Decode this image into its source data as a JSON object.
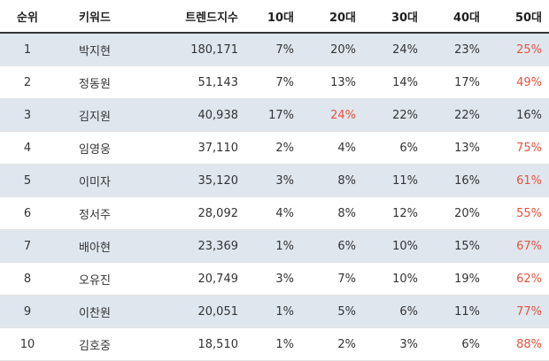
{
  "headers": {
    "rank": "순위",
    "keyword": "키워드",
    "trend": "트렌드지수",
    "age10": "10대",
    "age20": "20대",
    "age30": "30대",
    "age40": "40대",
    "age50": "50대"
  },
  "highlight_color": "#e5533d",
  "row_alt_color": "#dfe6ee",
  "rows": [
    {
      "rank": "1",
      "keyword": "박지현",
      "trend": "180,171",
      "a10": "7%",
      "a20": "20%",
      "a30": "24%",
      "a40": "23%",
      "a50": "25%",
      "max": "a50"
    },
    {
      "rank": "2",
      "keyword": "정동원",
      "trend": "51,143",
      "a10": "7%",
      "a20": "13%",
      "a30": "14%",
      "a40": "17%",
      "a50": "49%",
      "max": "a50"
    },
    {
      "rank": "3",
      "keyword": "김지원",
      "trend": "40,938",
      "a10": "17%",
      "a20": "24%",
      "a30": "22%",
      "a40": "22%",
      "a50": "16%",
      "max": "a20"
    },
    {
      "rank": "4",
      "keyword": "임영웅",
      "trend": "37,110",
      "a10": "2%",
      "a20": "4%",
      "a30": "6%",
      "a40": "13%",
      "a50": "75%",
      "max": "a50"
    },
    {
      "rank": "5",
      "keyword": "이미자",
      "trend": "35,120",
      "a10": "3%",
      "a20": "8%",
      "a30": "11%",
      "a40": "16%",
      "a50": "61%",
      "max": "a50"
    },
    {
      "rank": "6",
      "keyword": "정서주",
      "trend": "28,092",
      "a10": "4%",
      "a20": "8%",
      "a30": "12%",
      "a40": "20%",
      "a50": "55%",
      "max": "a50"
    },
    {
      "rank": "7",
      "keyword": "배아현",
      "trend": "23,369",
      "a10": "1%",
      "a20": "6%",
      "a30": "10%",
      "a40": "15%",
      "a50": "67%",
      "max": "a50"
    },
    {
      "rank": "8",
      "keyword": "오유진",
      "trend": "20,749",
      "a10": "3%",
      "a20": "7%",
      "a30": "10%",
      "a40": "19%",
      "a50": "62%",
      "max": "a50"
    },
    {
      "rank": "9",
      "keyword": "이찬원",
      "trend": "20,051",
      "a10": "1%",
      "a20": "5%",
      "a30": "6%",
      "a40": "11%",
      "a50": "77%",
      "max": "a50"
    },
    {
      "rank": "10",
      "keyword": "김호중",
      "trend": "18,510",
      "a10": "1%",
      "a20": "2%",
      "a30": "3%",
      "a40": "6%",
      "a50": "88%",
      "max": "a50"
    }
  ]
}
